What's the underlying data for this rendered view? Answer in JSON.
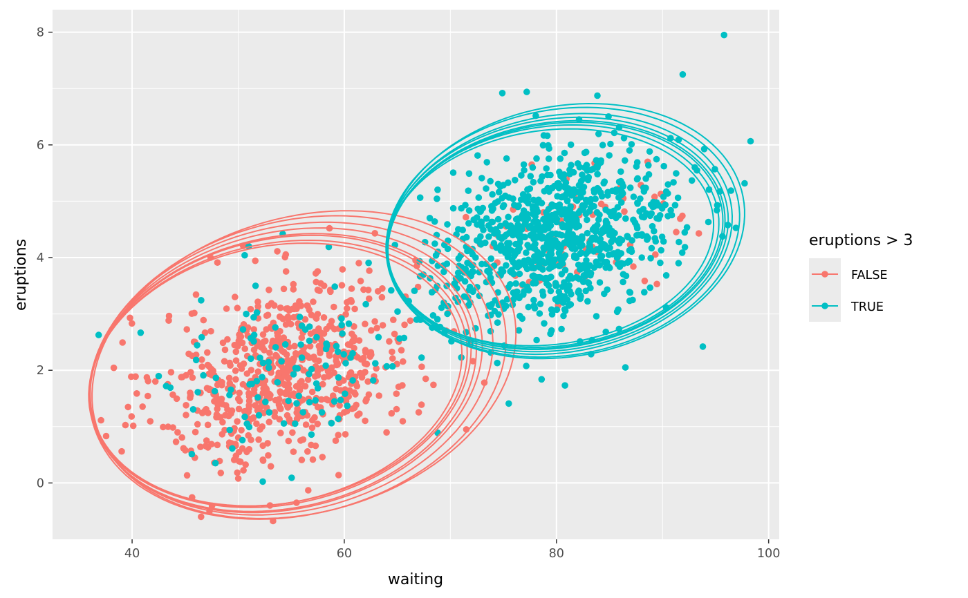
{
  "chart_data": {
    "type": "scatter",
    "xlabel": "waiting",
    "ylabel": "eruptions",
    "xlim": [
      32.5,
      101.0
    ],
    "ylim": [
      -1.0,
      8.4
    ],
    "x_ticks": [
      40,
      60,
      80,
      100
    ],
    "y_ticks": [
      0,
      2,
      4,
      6,
      8
    ],
    "x_tick_labels": [
      "40",
      "60",
      "80",
      "100"
    ],
    "y_tick_labels": [
      "0",
      "2",
      "4",
      "6",
      "8"
    ],
    "grid": true,
    "legend": {
      "title": "eruptions > 3",
      "position": "right",
      "entries": [
        "FALSE",
        "TRUE"
      ]
    },
    "series": [
      {
        "name": "FALSE",
        "color": "#F8766D",
        "cluster": {
          "mean_x": 54.5,
          "mean_y": 2.0,
          "sd_x": 6.0,
          "sd_y": 0.85,
          "correlation": 0.35,
          "count": 700
        },
        "ellipses": [
          {
            "cx": 54.0,
            "cy": 1.98,
            "a": 18.2,
            "b": 2.35,
            "tilt_deg": 13
          },
          {
            "cx": 54.5,
            "cy": 2.0,
            "a": 18.8,
            "b": 2.45,
            "tilt_deg": 14
          },
          {
            "cx": 55.0,
            "cy": 2.03,
            "a": 19.3,
            "b": 2.52,
            "tilt_deg": 14
          },
          {
            "cx": 53.8,
            "cy": 1.95,
            "a": 18.0,
            "b": 2.3,
            "tilt_deg": 12
          },
          {
            "cx": 55.6,
            "cy": 2.05,
            "a": 20.0,
            "b": 2.6,
            "tilt_deg": 15
          },
          {
            "cx": 54.2,
            "cy": 1.96,
            "a": 18.5,
            "b": 2.4,
            "tilt_deg": 13
          },
          {
            "cx": 56.2,
            "cy": 2.1,
            "a": 20.4,
            "b": 2.62,
            "tilt_deg": 16
          },
          {
            "cx": 53.5,
            "cy": 1.92,
            "a": 17.8,
            "b": 2.28,
            "tilt_deg": 12
          }
        ]
      },
      {
        "name": "TRUE",
        "color": "#00BFC4",
        "cluster": {
          "mean_x": 80.0,
          "mean_y": 4.35,
          "sd_x": 5.8,
          "sd_y": 0.75,
          "correlation": 0.3,
          "count": 950
        },
        "ellipses": [
          {
            "cx": 80.0,
            "cy": 4.4,
            "a": 16.0,
            "b": 2.0,
            "tilt_deg": 9
          },
          {
            "cx": 80.3,
            "cy": 4.42,
            "a": 16.4,
            "b": 2.1,
            "tilt_deg": 10
          },
          {
            "cx": 79.7,
            "cy": 4.38,
            "a": 15.7,
            "b": 1.95,
            "tilt_deg": 8
          },
          {
            "cx": 80.6,
            "cy": 4.45,
            "a": 16.8,
            "b": 2.18,
            "tilt_deg": 10
          },
          {
            "cx": 79.4,
            "cy": 4.36,
            "a": 15.5,
            "b": 1.9,
            "tilt_deg": 8
          },
          {
            "cx": 80.1,
            "cy": 4.41,
            "a": 16.2,
            "b": 2.05,
            "tilt_deg": 9
          },
          {
            "cx": 80.9,
            "cy": 4.47,
            "a": 17.0,
            "b": 2.22,
            "tilt_deg": 11
          },
          {
            "cx": 79.9,
            "cy": 4.39,
            "a": 15.9,
            "b": 1.98,
            "tilt_deg": 9
          }
        ],
        "outliers": [
          {
            "x": 95.8,
            "y": 7.95
          },
          {
            "x": 91.9,
            "y": 7.25
          },
          {
            "x": 74.9,
            "y": 6.92
          },
          {
            "x": 77.2,
            "y": 6.94
          },
          {
            "x": 54.2,
            "y": 4.42
          },
          {
            "x": 51.0,
            "y": 4.2
          },
          {
            "x": 93.8,
            "y": 2.42
          },
          {
            "x": 86.5,
            "y": 2.05
          },
          {
            "x": 80.8,
            "y": 1.73
          },
          {
            "x": 78.6,
            "y": 1.84
          },
          {
            "x": 75.5,
            "y": 1.41
          },
          {
            "x": 68.8,
            "y": 0.89
          },
          {
            "x": 50.4,
            "y": 0.76
          }
        ]
      }
    ],
    "outliers_false": [
      {
        "x": 46.5,
        "y": -0.6
      },
      {
        "x": 47.3,
        "y": -0.5
      },
      {
        "x": 53.0,
        "y": -0.4
      },
      {
        "x": 55.5,
        "y": -0.35
      },
      {
        "x": 56.6,
        "y": -0.13
      },
      {
        "x": 39.8,
        "y": 2.93
      },
      {
        "x": 47.4,
        "y": 4.0
      },
      {
        "x": 58.6,
        "y": 4.52
      },
      {
        "x": 86.3,
        "y": 5.05
      },
      {
        "x": 88.6,
        "y": 5.7
      },
      {
        "x": 73.2,
        "y": 1.78
      },
      {
        "x": 71.5,
        "y": 0.95
      }
    ]
  }
}
